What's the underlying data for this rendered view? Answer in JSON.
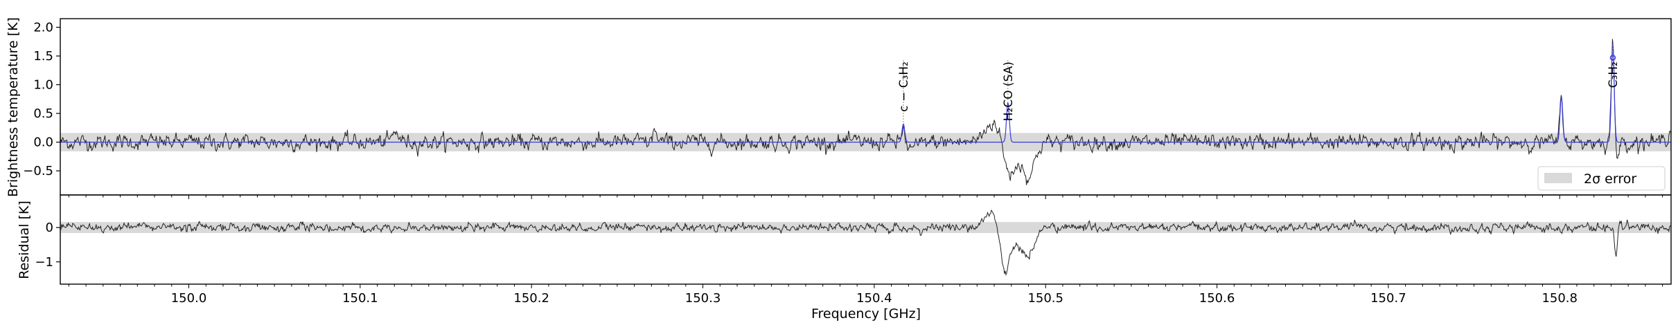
{
  "chart_data": [
    {
      "type": "line",
      "panel": "top",
      "ylabel": "Brightness temperature [K]",
      "xlim": [
        149.925,
        150.865
      ],
      "ylim": [
        -0.92,
        2.15
      ],
      "yticks": [
        {
          "value": 2.0,
          "label": "2.0"
        },
        {
          "value": 1.5,
          "label": "1.5"
        },
        {
          "value": 1.0,
          "label": "1.0"
        },
        {
          "value": 0.5,
          "label": "0.5"
        },
        {
          "value": 0.0,
          "label": "0.0"
        },
        {
          "value": -0.5,
          "label": "−0.5"
        }
      ],
      "error_band": {
        "label": "2σ error",
        "low": -0.16,
        "high": 0.16,
        "color": "#d9d9d9"
      },
      "legend": {
        "placement": "lower-right",
        "entries": [
          "2σ error"
        ]
      },
      "observed": {
        "color": "#222222",
        "noise_sigma": 0.07,
        "features": [
          {
            "x": 150.272,
            "y": 0.28,
            "w": 0.0008
          },
          {
            "x": 150.121,
            "y": 0.16,
            "w": 0.002
          },
          {
            "x": 150.417,
            "y": 0.28,
            "w": 0.0012
          },
          {
            "x": 150.421,
            "y": -0.12,
            "w": 0.004
          },
          {
            "x": 150.47,
            "y": 0.35,
            "w": 0.005
          },
          {
            "x": 150.478,
            "y": -0.55,
            "w": 0.003
          },
          {
            "x": 150.485,
            "y": -0.3,
            "w": 0.004
          },
          {
            "x": 150.491,
            "y": -0.48,
            "w": 0.003
          },
          {
            "x": 150.801,
            "y": 0.75,
            "w": 0.0009
          },
          {
            "x": 150.831,
            "y": 1.85,
            "w": 0.0009
          },
          {
            "x": 150.833,
            "y": -0.35,
            "w": 0.0012
          },
          {
            "x": 150.864,
            "y": 0.18,
            "w": 0.002
          }
        ]
      },
      "model": {
        "color": "#3a3adf",
        "lines": [
          {
            "x": 150.417,
            "peak": 0.32
          },
          {
            "x": 150.478,
            "peak": 0.7
          },
          {
            "x": 150.801,
            "peak": 0.8
          },
          {
            "x": 150.831,
            "peak": 1.72
          }
        ]
      },
      "line_ids": [
        {
          "x": 150.417,
          "label": "c − C₃H₂",
          "y_anchor": 0.32
        },
        {
          "x": 150.478,
          "label": "H₂CO (SA)",
          "y_anchor": 0.7
        },
        {
          "x": 150.831,
          "label": "C₃H₂",
          "y_anchor": 1.72
        }
      ],
      "markers": [
        {
          "x": 150.831,
          "y": 1.47
        }
      ]
    },
    {
      "type": "line",
      "panel": "bottom",
      "xlabel": "Frequency [GHz]",
      "ylabel": "Residual [K]",
      "xlim": [
        149.925,
        150.865
      ],
      "ylim": [
        -1.65,
        0.95
      ],
      "yticks": [
        {
          "value": 0,
          "label": "0"
        },
        {
          "value": -1,
          "label": "−1"
        }
      ],
      "xticks": [
        {
          "value": 150.0,
          "label": "150.0"
        },
        {
          "value": 150.1,
          "label": "150.1"
        },
        {
          "value": 150.2,
          "label": "150.2"
        },
        {
          "value": 150.3,
          "label": "150.3"
        },
        {
          "value": 150.4,
          "label": "150.4"
        },
        {
          "value": 150.5,
          "label": "150.5"
        },
        {
          "value": 150.6,
          "label": "150.6"
        },
        {
          "value": 150.7,
          "label": "150.7"
        },
        {
          "value": 150.8,
          "label": "150.8"
        }
      ],
      "error_band": {
        "low": -0.16,
        "high": 0.16,
        "color": "#d9d9d9"
      },
      "residual": {
        "color": "#222222",
        "noise_sigma": 0.065,
        "features": [
          {
            "x": 150.468,
            "y": 0.45,
            "w": 0.004
          },
          {
            "x": 150.476,
            "y": -1.25,
            "w": 0.0025
          },
          {
            "x": 150.484,
            "y": -0.55,
            "w": 0.004
          },
          {
            "x": 150.491,
            "y": -0.7,
            "w": 0.003
          },
          {
            "x": 150.833,
            "y": -0.95,
            "w": 0.0009
          },
          {
            "x": 150.835,
            "y": 0.25,
            "w": 0.0012
          },
          {
            "x": 150.421,
            "y": -0.12,
            "w": 0.004
          }
        ]
      }
    }
  ]
}
